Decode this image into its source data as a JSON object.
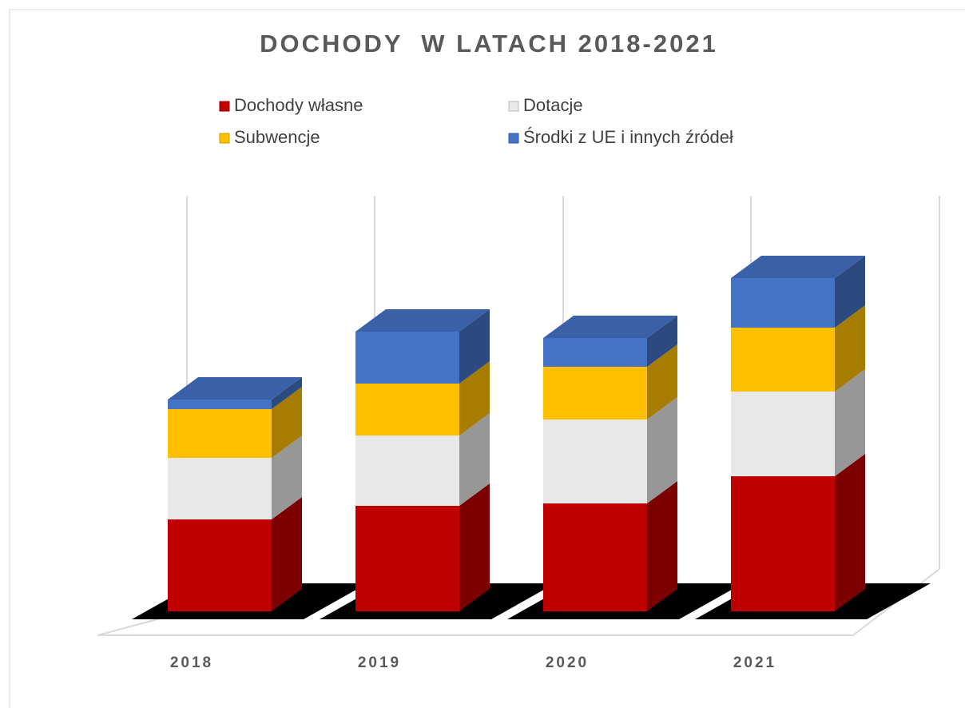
{
  "chart_data": {
    "type": "bar3d_stacked",
    "title": "DOCHODY  W LATACH 2018-2021",
    "categories": [
      "2018",
      "2019",
      "2020",
      "2021"
    ],
    "series": [
      {
        "name": "Dochody własne",
        "color": "#c00000",
        "values": [
          115,
          132,
          135,
          169
        ]
      },
      {
        "name": "Dotacje",
        "color": "#e8e8e8",
        "values": [
          77,
          88,
          105,
          106
        ]
      },
      {
        "name": "Subwencje",
        "color": "#ffc000",
        "values": [
          61,
          65,
          66,
          80
        ]
      },
      {
        "name": "Środki z UE i innych źródeł",
        "color": "#4472c4",
        "values": [
          12,
          65,
          36,
          62
        ]
      }
    ],
    "ylim": [
      0,
      450
    ]
  }
}
